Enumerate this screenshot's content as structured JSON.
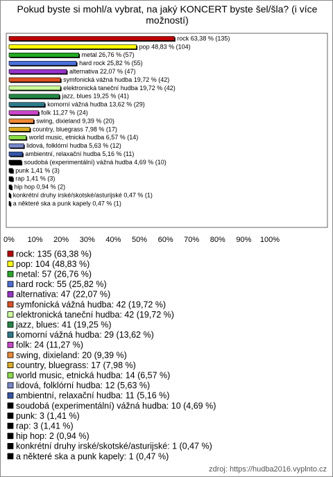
{
  "chart_data": {
    "type": "bar",
    "orientation": "horizontal",
    "title": "Pokud byste si mohl/a vybrat, na jaký KONCERT byste šel/šla? (i více možností)",
    "values": [
      63.38,
      48.83,
      26.76,
      25.82,
      22.07,
      19.72,
      19.72,
      19.25,
      13.62,
      11.27,
      9.39,
      7.98,
      6.57,
      5.63,
      5.16,
      4.69,
      1.41,
      1.41,
      0.94,
      0.47,
      0.47
    ],
    "value_labels": [
      "rock 63,38 % (135)",
      "pop 48,83 % (104)",
      "metal 26,76 % (57)",
      "hard rock 25,82 % (55)",
      "alternativa 22,07 % (47)",
      "symfonická vážná hudba 19,72 % (42)",
      "elektronická taneční hudba 19,72 % (42)",
      "jazz, blues 19,25 % (41)",
      "komorní vážná hudba 13,62 % (29)",
      "folk 11,27 % (24)",
      "swing, dixieland 9,39 % (20)",
      "country, bluegrass 7,98 % (17)",
      "world music, etnická hudba 6,57 % (14)",
      "lidová, folklórní hudba 5,63 % (12)",
      "ambientní, relaxační hudba 5,16 % (11)",
      "soudobá (experimentální) vážná hudba 4,69 % (10)",
      "punk 1,41 % (3)",
      "rap 1,41 % (3)",
      "hip hop 0,94 % (2)",
      "konkrétní druhy irské/skotské/asturijské 0,47 % (1)",
      "a některé ska a punk kapely 0,47 % (1)"
    ],
    "colors": [
      "#c00000",
      "#ffff00",
      "#22aa22",
      "#4a6fdc",
      "#9933cc",
      "#e05020",
      "#ccff99",
      "#228844",
      "#2a7a8a",
      "#cc44cc",
      "#ee8833",
      "#ddaa22",
      "#88dd44",
      "#7788cc",
      "#3355aa",
      "#000000",
      "#000000",
      "#000000",
      "#000000",
      "#000000",
      "#000000"
    ],
    "legend": [
      "rock: 135 (63,38 %)",
      "pop: 104 (48,83 %)",
      "metal: 57 (26,76 %)",
      "hard rock: 55 (25,82 %)",
      "alternativa: 47 (22,07 %)",
      "symfonická vážná hudba: 42 (19,72 %)",
      "elektronická taneční hudba: 42 (19,72 %)",
      "jazz, blues: 41 (19,25 %)",
      "komorní vážná hudba: 29 (13,62 %)",
      "folk: 24 (11,27 %)",
      "swing, dixieland: 20 (9,39 %)",
      "country, bluegrass: 17 (7,98 %)",
      "world music, etnická hudba: 14 (6,57 %)",
      "lidová, folklórní hudba: 12 (5,63 %)",
      "ambientní, relaxační hudba: 11 (5,16 %)",
      "soudobá (experimentální) vážná hudba: 10 (4,69 %)",
      "punk: 3 (1,41 %)",
      "rap: 3 (1,41 %)",
      "hip hop: 2 (0,94 %)",
      "konkrétní druhy irské/skotské/asturijské: 1 (0,47 %)",
      "a některé ska a punk kapely: 1 (0,47 %)"
    ],
    "xlim": [
      0,
      100
    ],
    "xticks": [
      {
        "value": 0,
        "label": "0%"
      },
      {
        "value": 10,
        "label": "10%"
      },
      {
        "value": 20,
        "label": "20%"
      },
      {
        "value": 30,
        "label": "30%"
      },
      {
        "value": 40,
        "label": "40%"
      },
      {
        "value": 50,
        "label": "50%"
      },
      {
        "value": 60,
        "label": "60%"
      },
      {
        "value": 70,
        "label": "70%"
      },
      {
        "value": 80,
        "label": "80%"
      },
      {
        "value": 90,
        "label": "90%"
      },
      {
        "value": 100,
        "label": "100%"
      }
    ],
    "source": "zdroj: https://hudba2016.vyplnto.cz"
  }
}
